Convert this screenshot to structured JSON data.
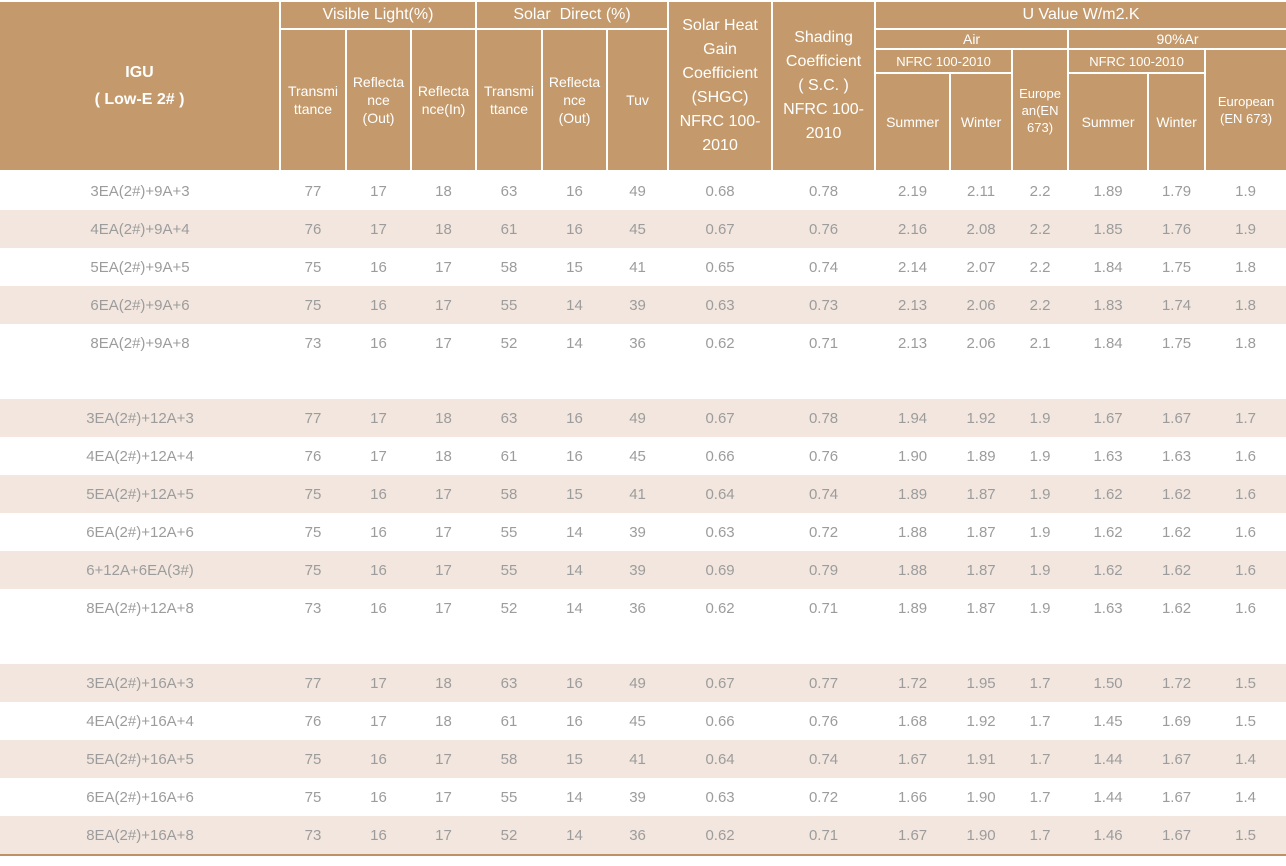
{
  "colors": {
    "header_bg": "#c49a6c",
    "stripe_bg": "#f2e6de",
    "row_bg": "#ffffff",
    "header_text": "#ffffff",
    "data_text": "#9c9c9c",
    "bottom_rule": "#bd9164"
  },
  "header": {
    "igu": "IGU\n( Low-E 2# )",
    "visible_light": "Visible Light(%)",
    "solar_direct": "Solar  Direct (%)",
    "shgc": "Solar Heat\nGain\nCoefficient\n(SHGC)\nNFRC 100-\n2010",
    "shading": "Shading\nCoefficient\n( S.C. )\nNFRC 100-\n2010",
    "u_value": "U Value W/m2.K",
    "air": "Air",
    "argon": "90%Ar",
    "nfrc_air": "NFRC 100-2010",
    "nfrc_ar": "NFRC 100-2010",
    "vl_transmittance": "Transmi\nttance",
    "vl_reflectance_out": "Reflecta\nnce\n(Out)",
    "vl_reflectance_in": "Reflecta\nnce(In)",
    "sd_transmittance": "Transmi\nttance",
    "sd_reflectance_out": "Reflecta\nnce\n(Out)",
    "tuv": "Tuv",
    "air_summer": "Summer",
    "air_winter": "Winter",
    "air_european": "Europe\nan(EN\n673)",
    "ar_summer": "Summer",
    "ar_winter": "Winter",
    "ar_european": "European\n(EN 673)"
  },
  "row_groups": [
    {
      "first_row_shade": "white",
      "rows": [
        {
          "igu": "3EA(2#)+9A+3",
          "values": [
            "77",
            "17",
            "18",
            "63",
            "16",
            "49",
            "0.68",
            "0.78",
            "2.19",
            "2.11",
            "2.2",
            "1.89",
            "1.79",
            "1.9"
          ]
        },
        {
          "igu": "4EA(2#)+9A+4",
          "values": [
            "76",
            "17",
            "18",
            "61",
            "16",
            "45",
            "0.67",
            "0.76",
            "2.16",
            "2.08",
            "2.2",
            "1.85",
            "1.76",
            "1.9"
          ]
        },
        {
          "igu": "5EA(2#)+9A+5",
          "values": [
            "75",
            "16",
            "17",
            "58",
            "15",
            "41",
            "0.65",
            "0.74",
            "2.14",
            "2.07",
            "2.2",
            "1.84",
            "1.75",
            "1.8"
          ]
        },
        {
          "igu": "6EA(2#)+9A+6",
          "values": [
            "75",
            "16",
            "17",
            "55",
            "14",
            "39",
            "0.63",
            "0.73",
            "2.13",
            "2.06",
            "2.2",
            "1.83",
            "1.74",
            "1.8"
          ]
        },
        {
          "igu": "8EA(2#)+9A+8",
          "values": [
            "73",
            "16",
            "17",
            "52",
            "14",
            "36",
            "0.62",
            "0.71",
            "2.13",
            "2.06",
            "2.1",
            "1.84",
            "1.75",
            "1.8"
          ]
        }
      ]
    },
    {
      "first_row_shade": "beige",
      "rows": [
        {
          "igu": "3EA(2#)+12A+3",
          "values": [
            "77",
            "17",
            "18",
            "63",
            "16",
            "49",
            "0.67",
            "0.78",
            "1.94",
            "1.92",
            "1.9",
            "1.67",
            "1.67",
            "1.7"
          ]
        },
        {
          "igu": "4EA(2#)+12A+4",
          "values": [
            "76",
            "17",
            "18",
            "61",
            "16",
            "45",
            "0.66",
            "0.76",
            "1.90",
            "1.89",
            "1.9",
            "1.63",
            "1.63",
            "1.6"
          ]
        },
        {
          "igu": "5EA(2#)+12A+5",
          "values": [
            "75",
            "16",
            "17",
            "58",
            "15",
            "41",
            "0.64",
            "0.74",
            "1.89",
            "1.87",
            "1.9",
            "1.62",
            "1.62",
            "1.6"
          ]
        },
        {
          "igu": "6EA(2#)+12A+6",
          "values": [
            "75",
            "16",
            "17",
            "55",
            "14",
            "39",
            "0.63",
            "0.72",
            "1.88",
            "1.87",
            "1.9",
            "1.62",
            "1.62",
            "1.6"
          ]
        },
        {
          "igu": "6+12A+6EA(3#)",
          "values": [
            "75",
            "16",
            "17",
            "55",
            "14",
            "39",
            "0.69",
            "0.79",
            "1.88",
            "1.87",
            "1.9",
            "1.62",
            "1.62",
            "1.6"
          ]
        },
        {
          "igu": "8EA(2#)+12A+8",
          "values": [
            "73",
            "16",
            "17",
            "52",
            "14",
            "36",
            "0.62",
            "0.71",
            "1.89",
            "1.87",
            "1.9",
            "1.63",
            "1.62",
            "1.6"
          ]
        }
      ]
    },
    {
      "first_row_shade": "beige",
      "rows": [
        {
          "igu": "3EA(2#)+16A+3",
          "values": [
            "77",
            "17",
            "18",
            "63",
            "16",
            "49",
            "0.67",
            "0.77",
            "1.72",
            "1.95",
            "1.7",
            "1.50",
            "1.72",
            "1.5"
          ]
        },
        {
          "igu": "4EA(2#)+16A+4",
          "values": [
            "76",
            "17",
            "18",
            "61",
            "16",
            "45",
            "0.66",
            "0.76",
            "1.68",
            "1.92",
            "1.7",
            "1.45",
            "1.69",
            "1.5"
          ]
        },
        {
          "igu": "5EA(2#)+16A+5",
          "values": [
            "75",
            "16",
            "17",
            "58",
            "15",
            "41",
            "0.64",
            "0.74",
            "1.67",
            "1.91",
            "1.7",
            "1.44",
            "1.67",
            "1.4"
          ]
        },
        {
          "igu": "6EA(2#)+16A+6",
          "values": [
            "75",
            "16",
            "17",
            "55",
            "14",
            "39",
            "0.63",
            "0.72",
            "1.66",
            "1.90",
            "1.7",
            "1.44",
            "1.67",
            "1.4"
          ]
        },
        {
          "igu": "8EA(2#)+16A+8",
          "values": [
            "73",
            "16",
            "17",
            "52",
            "14",
            "36",
            "0.62",
            "0.71",
            "1.67",
            "1.90",
            "1.7",
            "1.46",
            "1.67",
            "1.5"
          ]
        }
      ]
    }
  ]
}
